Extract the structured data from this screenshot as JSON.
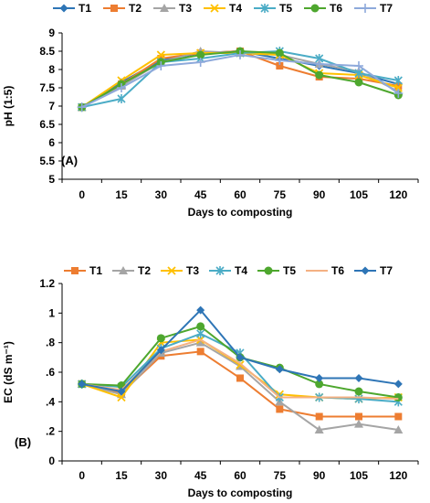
{
  "chart_data": [
    {
      "type": "line",
      "panel_label": "(A)",
      "xlabel": "Days to composting",
      "ylabel": "pH (1:5)",
      "x": [
        0,
        15,
        30,
        45,
        60,
        75,
        90,
        105,
        120
      ],
      "ylim": [
        5,
        9
      ],
      "yticks": [
        "5",
        "5.5",
        "6",
        "6.5",
        "7",
        "7.5",
        "8",
        "8.5",
        "9"
      ],
      "legend_position": "top",
      "grid": false,
      "series": [
        {
          "name": "T1",
          "color": "#2E75B6",
          "marker": "diamond",
          "values": [
            6.97,
            7.65,
            8.25,
            8.45,
            8.5,
            8.3,
            8.1,
            7.9,
            7.6
          ]
        },
        {
          "name": "T2",
          "color": "#ED7D31",
          "marker": "square",
          "values": [
            6.97,
            7.6,
            8.3,
            8.45,
            8.5,
            8.1,
            7.8,
            7.75,
            7.55
          ]
        },
        {
          "name": "T3",
          "color": "#A5A5A5",
          "marker": "triangle",
          "values": [
            6.97,
            7.55,
            8.2,
            8.5,
            8.45,
            8.4,
            8.15,
            7.95,
            7.4
          ]
        },
        {
          "name": "T4",
          "color": "#FFC000",
          "marker": "x",
          "values": [
            6.97,
            7.7,
            8.4,
            8.45,
            8.45,
            8.4,
            7.9,
            7.85,
            7.5
          ]
        },
        {
          "name": "T5",
          "color": "#4BACC6",
          "marker": "star",
          "values": [
            6.97,
            7.2,
            8.2,
            8.3,
            8.45,
            8.5,
            8.3,
            7.9,
            7.7
          ]
        },
        {
          "name": "T6",
          "color": "#4EA72E",
          "marker": "circle",
          "values": [
            6.97,
            7.6,
            8.2,
            8.4,
            8.5,
            8.45,
            7.85,
            7.65,
            7.3
          ]
        },
        {
          "name": "T7",
          "color": "#8EA9DB",
          "marker": "plus",
          "values": [
            6.97,
            7.5,
            8.1,
            8.2,
            8.4,
            8.25,
            8.15,
            8.1,
            7.35
          ]
        }
      ]
    },
    {
      "type": "line",
      "panel_label": "(B)",
      "xlabel": "Days to composting",
      "ylabel": "EC (dS m⁻¹)",
      "x": [
        0,
        15,
        30,
        45,
        60,
        75,
        90,
        105,
        120
      ],
      "ylim": [
        0,
        1.2
      ],
      "yticks": [
        "0",
        ".2",
        ".4",
        ".6",
        ".8",
        "1",
        "1.2"
      ],
      "legend_position": "top",
      "grid": false,
      "series": [
        {
          "name": "T1",
          "color": "#ED7D31",
          "marker": "square",
          "values": [
            0.52,
            0.46,
            0.71,
            0.74,
            0.56,
            0.35,
            0.3,
            0.3,
            0.3
          ]
        },
        {
          "name": "T2",
          "color": "#A5A5A5",
          "marker": "triangle",
          "values": [
            0.52,
            0.45,
            0.73,
            0.8,
            0.64,
            0.4,
            0.21,
            0.25,
            0.21
          ]
        },
        {
          "name": "T3",
          "color": "#FFC000",
          "marker": "x",
          "values": [
            0.52,
            0.43,
            0.8,
            0.82,
            0.65,
            0.45,
            0.43,
            0.42,
            0.43
          ]
        },
        {
          "name": "T4",
          "color": "#4BACC6",
          "marker": "star",
          "values": [
            0.52,
            0.5,
            0.76,
            0.86,
            0.73,
            0.43,
            0.43,
            0.42,
            0.4
          ]
        },
        {
          "name": "T5",
          "color": "#4EA72E",
          "marker": "circle",
          "values": [
            0.52,
            0.51,
            0.83,
            0.91,
            0.7,
            0.63,
            0.52,
            0.47,
            0.43
          ]
        },
        {
          "name": "T6",
          "color": "#F4B183",
          "marker": "none",
          "values": [
            0.52,
            0.48,
            0.74,
            0.82,
            0.66,
            0.43,
            0.43,
            0.43,
            0.42
          ]
        },
        {
          "name": "T7",
          "color": "#2E75B6",
          "marker": "diamond",
          "values": [
            0.52,
            0.47,
            0.75,
            1.02,
            0.7,
            0.62,
            0.56,
            0.56,
            0.52
          ]
        }
      ]
    }
  ]
}
